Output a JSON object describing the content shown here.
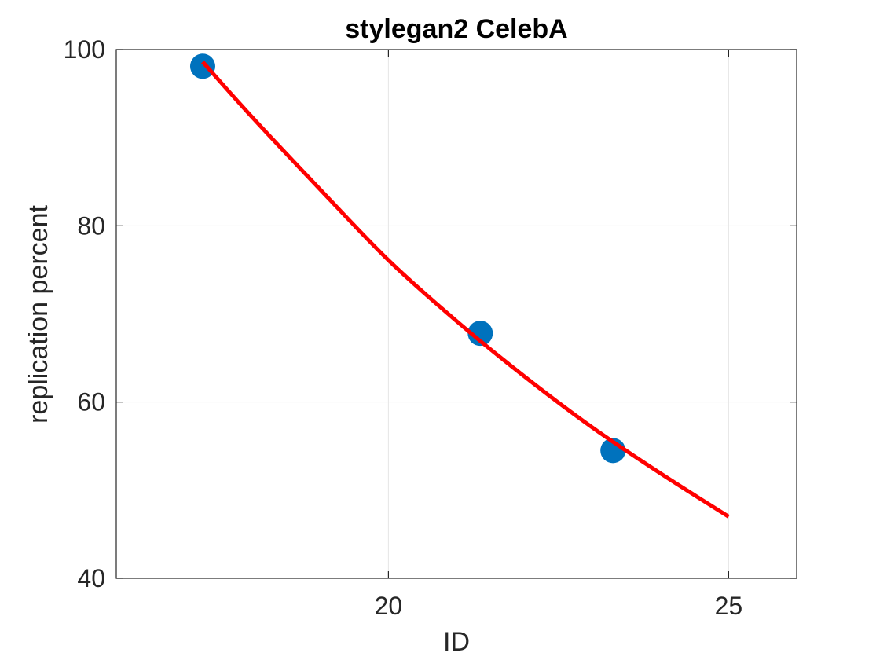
{
  "chart_data": {
    "type": "scatter",
    "title": "stylegan2 CelebA",
    "xlabel": "ID",
    "ylabel": "replication percent",
    "xlim": [
      16,
      26
    ],
    "ylim": [
      40,
      100
    ],
    "xticks": [
      20,
      25
    ],
    "yticks": [
      40,
      60,
      80,
      100
    ],
    "xtick_labels": [
      "20",
      "25"
    ],
    "ytick_labels": [
      "40",
      "60",
      "80",
      "100"
    ],
    "grid": true,
    "legend": null,
    "series": [
      {
        "type": "scatter",
        "color": "#0072BD",
        "points": [
          {
            "x": 17.27,
            "y": 98.1
          },
          {
            "x": 21.35,
            "y": 67.8
          },
          {
            "x": 23.3,
            "y": 54.5
          }
        ]
      },
      {
        "type": "line",
        "color": "#FF0000",
        "curve": "fit",
        "points": [
          {
            "x": 17.27,
            "y": 98.6
          },
          {
            "x": 18.0,
            "y": 92.3
          },
          {
            "x": 19.0,
            "y": 84.1
          },
          {
            "x": 20.0,
            "y": 76.1
          },
          {
            "x": 21.0,
            "y": 69.2
          },
          {
            "x": 22.0,
            "y": 62.9
          },
          {
            "x": 23.0,
            "y": 57.1
          },
          {
            "x": 24.0,
            "y": 51.9
          },
          {
            "x": 25.0,
            "y": 47.0
          }
        ]
      }
    ]
  }
}
